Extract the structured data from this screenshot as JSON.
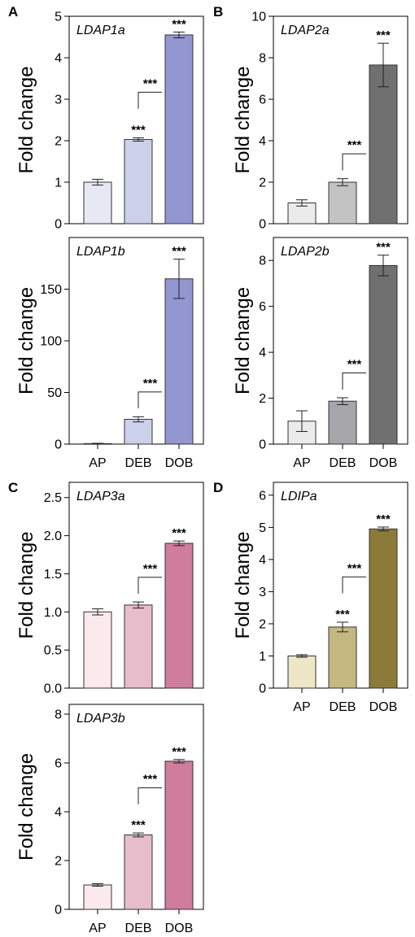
{
  "panel_letters": [
    "A",
    "B",
    "C",
    "D"
  ],
  "chart_data": [
    {
      "type": "bar",
      "panel": "A",
      "title": "LDAP1a",
      "ylabel": "Fold change",
      "categories": [
        "AP",
        "DEB",
        "DOB"
      ],
      "show_categories": false,
      "values": [
        1.0,
        2.03,
        4.55
      ],
      "errors": [
        0.07,
        0.04,
        0.07
      ],
      "colors": [
        "#e6e8f4",
        "#cdd0ea",
        "#9496d2"
      ],
      "ylim": [
        0,
        5
      ],
      "yticks": [
        "0",
        "1",
        "2",
        "3",
        "4",
        "5"
      ],
      "bar_stars": [
        "",
        "***",
        "***"
      ],
      "bracket_stars": "***",
      "bracket_between": [
        1,
        2
      ]
    },
    {
      "type": "bar",
      "panel": "",
      "title": "LDAP1b",
      "ylabel": "Fold change",
      "categories": [
        "AP",
        "DEB",
        "DOB"
      ],
      "show_categories": true,
      "values": [
        0.5,
        24,
        160
      ],
      "errors": [
        0.3,
        2.5,
        19
      ],
      "colors": [
        "#e6e8f4",
        "#cdd0ea",
        "#9496d2"
      ],
      "ylim": [
        0,
        200
      ],
      "yticks": [
        "0",
        "50",
        "100",
        "150"
      ],
      "bar_stars": [
        "",
        "",
        "***"
      ],
      "bracket_stars": "***",
      "bracket_between": [
        1,
        2
      ]
    },
    {
      "type": "bar",
      "panel": "B",
      "title": "LDAP2a",
      "ylabel": "Fold change",
      "categories": [
        "AP",
        "DEB",
        "DOB"
      ],
      "show_categories": false,
      "values": [
        1.0,
        2.0,
        7.65
      ],
      "errors": [
        0.15,
        0.17,
        1.05
      ],
      "colors": [
        "#ebebeb",
        "#c3c3c3",
        "#707070"
      ],
      "ylim": [
        0,
        10
      ],
      "yticks": [
        "0",
        "2",
        "4",
        "6",
        "8",
        "10"
      ],
      "bar_stars": [
        "",
        "",
        "***"
      ],
      "bracket_stars": "***",
      "bracket_between": [
        1,
        2
      ]
    },
    {
      "type": "bar",
      "panel": "",
      "title": "LDAP2b",
      "ylabel": "Fold change",
      "categories": [
        "AP",
        "DEB",
        "DOB"
      ],
      "show_categories": true,
      "values": [
        1.0,
        1.87,
        7.78
      ],
      "errors": [
        0.45,
        0.15,
        0.45
      ],
      "colors": [
        "#ebebeb",
        "#a6a6aa",
        "#707070"
      ],
      "ylim": [
        0,
        9
      ],
      "yticks": [
        "0",
        "2",
        "4",
        "6",
        "8"
      ],
      "bar_stars": [
        "",
        "",
        "***"
      ],
      "bracket_stars": "***",
      "bracket_between": [
        1,
        2
      ]
    },
    {
      "type": "bar",
      "panel": "C",
      "title": "LDAP3a",
      "ylabel": "Fold change",
      "categories": [
        "AP",
        "DEB",
        "DOB"
      ],
      "show_categories": false,
      "values": [
        1.0,
        1.09,
        1.9
      ],
      "errors": [
        0.04,
        0.04,
        0.03
      ],
      "colors": [
        "#fbe9ec",
        "#e7bdcc",
        "#d07c9b"
      ],
      "ylim": [
        0,
        2.7
      ],
      "yticks": [
        "0.0",
        "0.5",
        "1.0",
        "1.5",
        "2.0",
        "2.5"
      ],
      "bar_stars": [
        "",
        "",
        "***"
      ],
      "bracket_stars": "***",
      "bracket_between": [
        1,
        2
      ]
    },
    {
      "type": "bar",
      "panel": "",
      "title": "LDAP3b",
      "ylabel": "Fold change",
      "categories": [
        "AP",
        "DEB",
        "DOB"
      ],
      "show_categories": true,
      "values": [
        1.0,
        3.05,
        6.07
      ],
      "errors": [
        0.05,
        0.08,
        0.07
      ],
      "colors": [
        "#fbe9ec",
        "#e7bdcc",
        "#d07c9b"
      ],
      "ylim": [
        0,
        8.4
      ],
      "yticks": [
        "0",
        "2",
        "4",
        "6",
        "8"
      ],
      "bar_stars": [
        "",
        "***",
        "***"
      ],
      "bracket_stars": "***",
      "bracket_between": [
        1,
        2
      ]
    },
    {
      "type": "bar",
      "panel": "D",
      "title": "LDIPa",
      "ylabel": "Fold change",
      "categories": [
        "AP",
        "DEB",
        "DOB"
      ],
      "show_categories": true,
      "values": [
        1.0,
        1.9,
        4.95
      ],
      "errors": [
        0.04,
        0.15,
        0.06
      ],
      "colors": [
        "#ede7c7",
        "#c4b880",
        "#8c7b38"
      ],
      "ylim": [
        0,
        6.4
      ],
      "yticks": [
        "0",
        "1",
        "2",
        "3",
        "4",
        "5",
        "6"
      ],
      "bar_stars": [
        "",
        "***",
        "***"
      ],
      "bracket_stars": "***",
      "bracket_between": [
        1,
        2
      ]
    }
  ]
}
